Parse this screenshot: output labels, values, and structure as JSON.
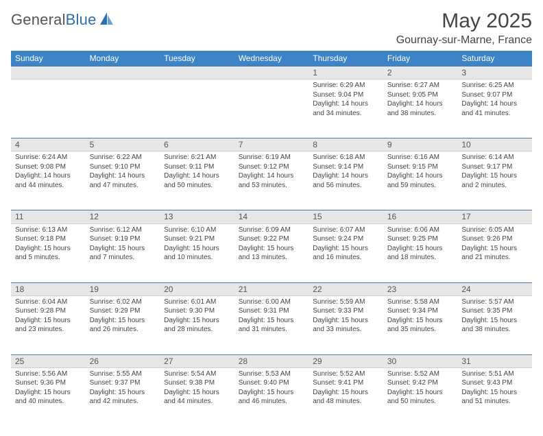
{
  "brand": {
    "part1": "General",
    "part2": "Blue"
  },
  "title": "May 2025",
  "location": "Gournay-sur-Marne, France",
  "colors": {
    "header_bg": "#3d84c6",
    "header_text": "#ffffff",
    "daynum_bg": "#e7e7e7",
    "daynum_border_top": "#4a7aa8",
    "text": "#444444",
    "logo_gray": "#555555",
    "logo_blue": "#2f6fb0"
  },
  "typography": {
    "title_fontsize": 30,
    "location_fontsize": 16,
    "header_fontsize": 12,
    "daynum_fontsize": 12,
    "cell_fontsize": 10
  },
  "weekdays": [
    "Sunday",
    "Monday",
    "Tuesday",
    "Wednesday",
    "Thursday",
    "Friday",
    "Saturday"
  ],
  "weeks": [
    [
      null,
      null,
      null,
      null,
      {
        "n": "1",
        "sr": "Sunrise: 6:29 AM",
        "ss": "Sunset: 9:04 PM",
        "d1": "Daylight: 14 hours",
        "d2": "and 34 minutes."
      },
      {
        "n": "2",
        "sr": "Sunrise: 6:27 AM",
        "ss": "Sunset: 9:05 PM",
        "d1": "Daylight: 14 hours",
        "d2": "and 38 minutes."
      },
      {
        "n": "3",
        "sr": "Sunrise: 6:25 AM",
        "ss": "Sunset: 9:07 PM",
        "d1": "Daylight: 14 hours",
        "d2": "and 41 minutes."
      }
    ],
    [
      {
        "n": "4",
        "sr": "Sunrise: 6:24 AM",
        "ss": "Sunset: 9:08 PM",
        "d1": "Daylight: 14 hours",
        "d2": "and 44 minutes."
      },
      {
        "n": "5",
        "sr": "Sunrise: 6:22 AM",
        "ss": "Sunset: 9:10 PM",
        "d1": "Daylight: 14 hours",
        "d2": "and 47 minutes."
      },
      {
        "n": "6",
        "sr": "Sunrise: 6:21 AM",
        "ss": "Sunset: 9:11 PM",
        "d1": "Daylight: 14 hours",
        "d2": "and 50 minutes."
      },
      {
        "n": "7",
        "sr": "Sunrise: 6:19 AM",
        "ss": "Sunset: 9:12 PM",
        "d1": "Daylight: 14 hours",
        "d2": "and 53 minutes."
      },
      {
        "n": "8",
        "sr": "Sunrise: 6:18 AM",
        "ss": "Sunset: 9:14 PM",
        "d1": "Daylight: 14 hours",
        "d2": "and 56 minutes."
      },
      {
        "n": "9",
        "sr": "Sunrise: 6:16 AM",
        "ss": "Sunset: 9:15 PM",
        "d1": "Daylight: 14 hours",
        "d2": "and 59 minutes."
      },
      {
        "n": "10",
        "sr": "Sunrise: 6:14 AM",
        "ss": "Sunset: 9:17 PM",
        "d1": "Daylight: 15 hours",
        "d2": "and 2 minutes."
      }
    ],
    [
      {
        "n": "11",
        "sr": "Sunrise: 6:13 AM",
        "ss": "Sunset: 9:18 PM",
        "d1": "Daylight: 15 hours",
        "d2": "and 5 minutes."
      },
      {
        "n": "12",
        "sr": "Sunrise: 6:12 AM",
        "ss": "Sunset: 9:19 PM",
        "d1": "Daylight: 15 hours",
        "d2": "and 7 minutes."
      },
      {
        "n": "13",
        "sr": "Sunrise: 6:10 AM",
        "ss": "Sunset: 9:21 PM",
        "d1": "Daylight: 15 hours",
        "d2": "and 10 minutes."
      },
      {
        "n": "14",
        "sr": "Sunrise: 6:09 AM",
        "ss": "Sunset: 9:22 PM",
        "d1": "Daylight: 15 hours",
        "d2": "and 13 minutes."
      },
      {
        "n": "15",
        "sr": "Sunrise: 6:07 AM",
        "ss": "Sunset: 9:24 PM",
        "d1": "Daylight: 15 hours",
        "d2": "and 16 minutes."
      },
      {
        "n": "16",
        "sr": "Sunrise: 6:06 AM",
        "ss": "Sunset: 9:25 PM",
        "d1": "Daylight: 15 hours",
        "d2": "and 18 minutes."
      },
      {
        "n": "17",
        "sr": "Sunrise: 6:05 AM",
        "ss": "Sunset: 9:26 PM",
        "d1": "Daylight: 15 hours",
        "d2": "and 21 minutes."
      }
    ],
    [
      {
        "n": "18",
        "sr": "Sunrise: 6:04 AM",
        "ss": "Sunset: 9:28 PM",
        "d1": "Daylight: 15 hours",
        "d2": "and 23 minutes."
      },
      {
        "n": "19",
        "sr": "Sunrise: 6:02 AM",
        "ss": "Sunset: 9:29 PM",
        "d1": "Daylight: 15 hours",
        "d2": "and 26 minutes."
      },
      {
        "n": "20",
        "sr": "Sunrise: 6:01 AM",
        "ss": "Sunset: 9:30 PM",
        "d1": "Daylight: 15 hours",
        "d2": "and 28 minutes."
      },
      {
        "n": "21",
        "sr": "Sunrise: 6:00 AM",
        "ss": "Sunset: 9:31 PM",
        "d1": "Daylight: 15 hours",
        "d2": "and 31 minutes."
      },
      {
        "n": "22",
        "sr": "Sunrise: 5:59 AM",
        "ss": "Sunset: 9:33 PM",
        "d1": "Daylight: 15 hours",
        "d2": "and 33 minutes."
      },
      {
        "n": "23",
        "sr": "Sunrise: 5:58 AM",
        "ss": "Sunset: 9:34 PM",
        "d1": "Daylight: 15 hours",
        "d2": "and 35 minutes."
      },
      {
        "n": "24",
        "sr": "Sunrise: 5:57 AM",
        "ss": "Sunset: 9:35 PM",
        "d1": "Daylight: 15 hours",
        "d2": "and 38 minutes."
      }
    ],
    [
      {
        "n": "25",
        "sr": "Sunrise: 5:56 AM",
        "ss": "Sunset: 9:36 PM",
        "d1": "Daylight: 15 hours",
        "d2": "and 40 minutes."
      },
      {
        "n": "26",
        "sr": "Sunrise: 5:55 AM",
        "ss": "Sunset: 9:37 PM",
        "d1": "Daylight: 15 hours",
        "d2": "and 42 minutes."
      },
      {
        "n": "27",
        "sr": "Sunrise: 5:54 AM",
        "ss": "Sunset: 9:38 PM",
        "d1": "Daylight: 15 hours",
        "d2": "and 44 minutes."
      },
      {
        "n": "28",
        "sr": "Sunrise: 5:53 AM",
        "ss": "Sunset: 9:40 PM",
        "d1": "Daylight: 15 hours",
        "d2": "and 46 minutes."
      },
      {
        "n": "29",
        "sr": "Sunrise: 5:52 AM",
        "ss": "Sunset: 9:41 PM",
        "d1": "Daylight: 15 hours",
        "d2": "and 48 minutes."
      },
      {
        "n": "30",
        "sr": "Sunrise: 5:52 AM",
        "ss": "Sunset: 9:42 PM",
        "d1": "Daylight: 15 hours",
        "d2": "and 50 minutes."
      },
      {
        "n": "31",
        "sr": "Sunrise: 5:51 AM",
        "ss": "Sunset: 9:43 PM",
        "d1": "Daylight: 15 hours",
        "d2": "and 51 minutes."
      }
    ]
  ]
}
